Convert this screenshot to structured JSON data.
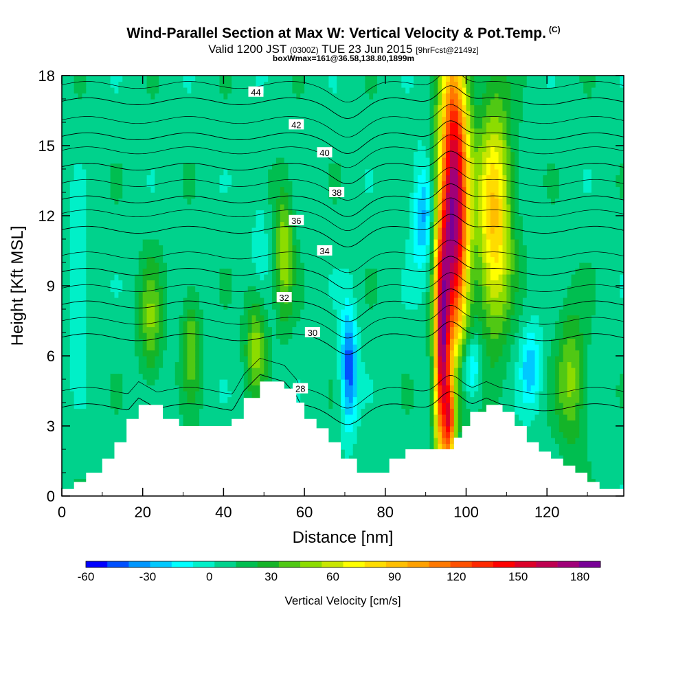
{
  "header": {
    "title": "Wind-Parallel Section at Max W: Vertical Velocity & Pot.Temp.",
    "title_corner": "(C)",
    "subtitle_a": "Valid 1200 JST",
    "subtitle_b": "(0300Z)",
    "subtitle_c": "TUE 23 Jun 2015",
    "subtitle_d": "[9hrFcst@2149z]",
    "subtitle2": "boxWmax=161@36.58,138.80,1899m"
  },
  "chart_data": {
    "type": "heatmap",
    "xlabel": "Distance [nm]",
    "ylabel": "Height [Kft MSL]",
    "xlim": [
      0,
      139
    ],
    "ylim": [
      0,
      18
    ],
    "x_ticks": [
      0,
      20,
      40,
      60,
      80,
      100,
      120
    ],
    "y_ticks": [
      0,
      3,
      6,
      9,
      12,
      15,
      18
    ],
    "colorbar": {
      "title": "Vertical Velocity [cm/s]",
      "range": [
        -60,
        190
      ],
      "ticks": [
        -60,
        -30,
        0,
        30,
        60,
        90,
        120,
        150,
        180
      ],
      "colors": [
        "#0000ff",
        "#0050ff",
        "#0096ff",
        "#00c8ff",
        "#00ffff",
        "#00f0c8",
        "#00d28c",
        "#00be50",
        "#14b428",
        "#50c814",
        "#8cdc00",
        "#c8e600",
        "#ffff00",
        "#ffdc00",
        "#ffbe00",
        "#ffa000",
        "#ff7800",
        "#ff5000",
        "#ff2800",
        "#ff0000",
        "#dc0028",
        "#be0050",
        "#a00078",
        "#780096"
      ]
    },
    "terrain": [
      [
        0,
        0.3
      ],
      [
        3,
        0.6
      ],
      [
        6,
        1.0
      ],
      [
        10,
        1.6
      ],
      [
        13,
        2.3
      ],
      [
        16,
        3.3
      ],
      [
        19,
        3.9
      ],
      [
        25,
        3.3
      ],
      [
        29,
        3.0
      ],
      [
        40,
        3.0
      ],
      [
        42,
        3.3
      ],
      [
        45,
        4.2
      ],
      [
        49,
        4.9
      ],
      [
        55,
        4.6
      ],
      [
        58,
        4.0
      ],
      [
        60,
        3.3
      ],
      [
        63,
        2.9
      ],
      [
        66,
        2.3
      ],
      [
        69,
        1.6
      ],
      [
        73,
        1.0
      ],
      [
        78,
        1.0
      ],
      [
        81,
        1.6
      ],
      [
        85,
        2.0
      ],
      [
        88,
        2.0
      ],
      [
        92,
        2.0
      ],
      [
        95,
        2.0
      ],
      [
        97,
        2.5
      ],
      [
        99,
        3.0
      ],
      [
        101,
        3.6
      ],
      [
        105,
        3.9
      ],
      [
        109,
        3.6
      ],
      [
        112,
        3.0
      ],
      [
        115,
        2.3
      ],
      [
        118,
        1.9
      ],
      [
        121,
        1.6
      ],
      [
        124,
        1.3
      ],
      [
        127,
        1.0
      ],
      [
        130,
        0.6
      ],
      [
        133,
        0.3
      ],
      [
        139,
        0.3
      ]
    ],
    "w_features": [
      {
        "x": 97,
        "y": 12.5,
        "sx": 2.5,
        "sy": 4.5,
        "amp": 175
      },
      {
        "x": 94,
        "y": 6.0,
        "sx": 1.3,
        "sy": 3.5,
        "amp": 140
      },
      {
        "x": 96,
        "y": 3.2,
        "sx": 0.9,
        "sy": 1.2,
        "amp": 90
      },
      {
        "x": 107,
        "y": 12.0,
        "sx": 3.0,
        "sy": 3.5,
        "amp": 80
      },
      {
        "x": 55,
        "y": 10.5,
        "sx": 1.6,
        "sy": 2.0,
        "amp": 45
      },
      {
        "x": 48,
        "y": 6.5,
        "sx": 1.8,
        "sy": 1.6,
        "amp": 40
      },
      {
        "x": 32,
        "y": 6.5,
        "sx": 1.6,
        "sy": 1.6,
        "amp": 35
      },
      {
        "x": 22,
        "y": 7.5,
        "sx": 2.0,
        "sy": 1.8,
        "amp": 35
      },
      {
        "x": 126,
        "y": 5.0,
        "sx": 2.5,
        "sy": 2.0,
        "amp": 40
      },
      {
        "x": 71,
        "y": 5.5,
        "sx": 1.4,
        "sy": 1.8,
        "amp": -55
      },
      {
        "x": 90,
        "y": 12.0,
        "sx": 1.2,
        "sy": 1.5,
        "amp": -30
      },
      {
        "x": 101,
        "y": 5.5,
        "sx": 2.0,
        "sy": 1.0,
        "amp": -40
      },
      {
        "x": 116,
        "y": 5.5,
        "sx": 1.8,
        "sy": 1.2,
        "amp": -35
      },
      {
        "x": 4,
        "y": 9.0,
        "sx": 2.0,
        "sy": 2.0,
        "amp": -15
      },
      {
        "x": 49,
        "y": 11.0,
        "sx": 1.2,
        "sy": 1.5,
        "amp": -15
      },
      {
        "x": 88,
        "y": 12.0,
        "sx": 1.5,
        "sy": 2.0,
        "amp": -20
      }
    ],
    "theta_contours": [
      {
        "value": 28,
        "label_x": 59,
        "label_y": 4.6
      },
      {
        "value": 30,
        "label_x": 62,
        "label_y": 7.0
      },
      {
        "value": 32,
        "label_x": 55,
        "label_y": 8.5
      },
      {
        "value": 34,
        "label_x": 65,
        "label_y": 10.5
      },
      {
        "value": 36,
        "label_x": 58,
        "label_y": 11.8
      },
      {
        "value": 38,
        "label_x": 68,
        "label_y": 13.0
      },
      {
        "value": 40,
        "label_x": 65,
        "label_y": 14.7
      },
      {
        "value": 42,
        "label_x": 58,
        "label_y": 15.9
      },
      {
        "value": 44,
        "label_x": 48,
        "label_y": 17.3
      }
    ]
  }
}
